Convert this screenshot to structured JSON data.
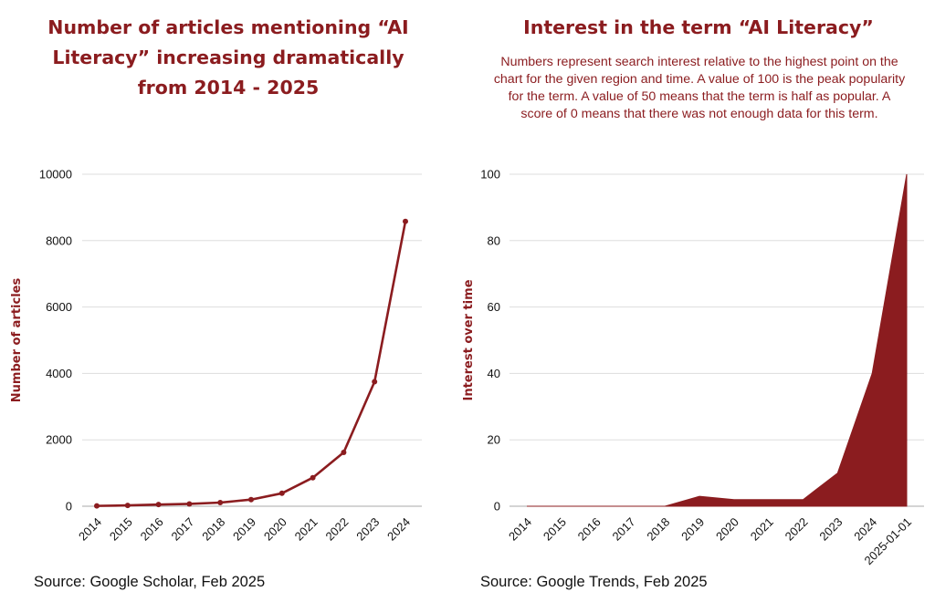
{
  "accent_color": "#8b1c1f",
  "chart_data": [
    {
      "type": "line",
      "title": "Number of articles mentioning “AI Literacy” increasing dramatically from 2014 - 2025",
      "xlabel": "",
      "ylabel": "Number of articles",
      "x": [
        "2014",
        "2015",
        "2016",
        "2017",
        "2018",
        "2019",
        "2020",
        "2021",
        "2022",
        "2023",
        "2024"
      ],
      "values": [
        10,
        25,
        50,
        70,
        110,
        200,
        390,
        860,
        1620,
        3750,
        8580
      ],
      "ylim": [
        0,
        10000
      ],
      "yticks": [
        "0",
        "2000",
        "4000",
        "6000",
        "8000",
        "10000"
      ],
      "grid": true,
      "source": "Source: Google Scholar, Feb 2025"
    },
    {
      "type": "area",
      "title": "Interest in the term “AI Literacy”",
      "subtitle": "Numbers represent search interest relative to the highest point on the chart for the given region and time. A value of 100 is the peak popularity for the term. A value of 50 means that the term is half as popular. A score of 0 means that there was not enough data for this term.",
      "xlabel": "",
      "ylabel": "Interest over time",
      "x": [
        "2014",
        "2015",
        "2016",
        "2017",
        "2018",
        "2019",
        "2020",
        "2021",
        "2022",
        "2023",
        "2024",
        "2025-01-01"
      ],
      "values": [
        0,
        0,
        0,
        0,
        0,
        3,
        2,
        2,
        2,
        10,
        40,
        100
      ],
      "ylim": [
        0,
        100
      ],
      "yticks": [
        "0",
        "20",
        "40",
        "60",
        "80",
        "100"
      ],
      "grid": true,
      "source": "Source: Google Trends, Feb 2025"
    }
  ]
}
